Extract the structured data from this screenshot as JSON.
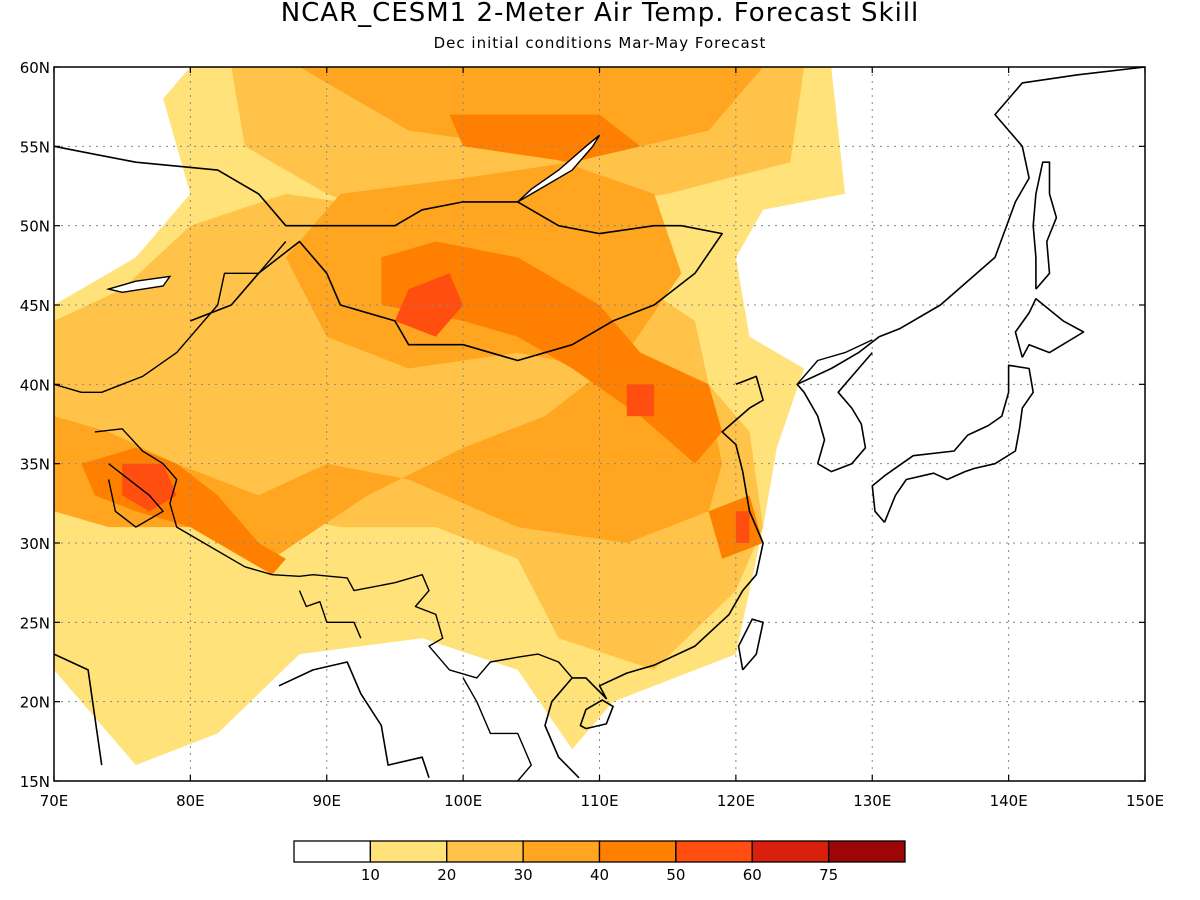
{
  "title": "NCAR_CESM1 2-Meter Air Temp. Forecast Skill",
  "subtitle": "Dec initial conditions  Mar-May Forecast",
  "axes": {
    "lon_ticks": [
      "70E",
      "80E",
      "90E",
      "100E",
      "110E",
      "120E",
      "130E",
      "140E",
      "150E"
    ],
    "lat_ticks": [
      "60N",
      "55N",
      "50N",
      "45N",
      "40N",
      "35N",
      "30N",
      "25N",
      "20N",
      "15N"
    ],
    "lon_range": [
      70,
      150
    ],
    "lat_range": [
      15,
      60
    ],
    "grid": "dotted"
  },
  "colorbar": {
    "labels": [
      "10",
      "20",
      "30",
      "40",
      "50",
      "60",
      "75"
    ],
    "bins": [
      {
        "color": "#ffffff"
      },
      {
        "color": "#ffe27a"
      },
      {
        "color": "#ffc34a"
      },
      {
        "color": "#ffa51f"
      },
      {
        "color": "#ff8000"
      },
      {
        "color": "#ff4e10"
      },
      {
        "color": "#d9200c"
      },
      {
        "color": "#9c0606"
      }
    ]
  },
  "skill_regions": [
    {
      "level": 1,
      "points": [
        [
          80,
          60
        ],
        [
          127,
          60
        ],
        [
          128,
          52
        ],
        [
          122,
          51
        ],
        [
          120,
          48
        ],
        [
          121,
          43
        ],
        [
          125,
          41
        ],
        [
          123,
          36
        ],
        [
          122,
          31
        ],
        [
          120,
          23
        ],
        [
          111,
          20
        ],
        [
          108,
          17
        ],
        [
          104,
          22
        ],
        [
          97,
          24
        ],
        [
          88,
          23
        ],
        [
          82,
          18
        ],
        [
          76,
          16
        ],
        [
          70,
          22
        ],
        [
          70,
          45
        ],
        [
          76,
          48
        ],
        [
          80,
          52
        ],
        [
          78,
          58
        ]
      ]
    },
    {
      "level": 2,
      "points": [
        [
          83,
          60
        ],
        [
          125,
          60
        ],
        [
          124,
          54
        ],
        [
          115,
          52
        ],
        [
          107,
          51
        ],
        [
          101,
          50
        ],
        [
          95,
          51
        ],
        [
          87,
          52
        ],
        [
          80,
          50
        ],
        [
          75,
          46
        ],
        [
          70,
          44
        ],
        [
          70,
          37
        ],
        [
          76,
          36
        ],
        [
          79,
          34
        ],
        [
          85,
          32
        ],
        [
          91,
          31
        ],
        [
          98,
          31
        ],
        [
          104,
          29
        ],
        [
          107,
          24
        ],
        [
          114,
          22
        ],
        [
          120,
          27
        ],
        [
          122,
          31
        ],
        [
          121,
          37
        ],
        [
          118,
          40
        ],
        [
          117,
          44
        ],
        [
          110,
          48
        ],
        [
          102,
          50
        ],
        [
          96,
          50
        ],
        [
          90,
          52
        ],
        [
          84,
          55
        ]
      ]
    },
    {
      "level": 3,
      "points": [
        [
          88,
          60
        ],
        [
          122,
          60
        ],
        [
          118,
          56
        ],
        [
          108,
          54
        ],
        [
          100,
          53
        ],
        [
          91,
          52
        ],
        [
          87,
          48
        ],
        [
          90,
          43
        ],
        [
          96,
          41
        ],
        [
          104,
          42
        ],
        [
          110,
          41
        ],
        [
          114,
          39
        ],
        [
          118,
          39
        ],
        [
          119,
          35
        ],
        [
          118,
          32
        ],
        [
          112,
          30
        ],
        [
          104,
          31
        ],
        [
          96,
          34
        ],
        [
          90,
          35
        ],
        [
          85,
          33
        ],
        [
          79,
          35
        ],
        [
          74,
          37
        ],
        [
          70,
          38
        ],
        [
          70,
          32
        ],
        [
          74,
          31
        ],
        [
          80,
          31
        ],
        [
          86,
          29
        ],
        [
          93,
          33
        ],
        [
          100,
          36
        ],
        [
          106,
          38
        ],
        [
          112,
          42
        ],
        [
          116,
          47
        ],
        [
          114,
          52
        ],
        [
          104,
          55
        ],
        [
          96,
          56
        ]
      ]
    },
    {
      "level": 4,
      "points": [
        [
          94,
          48
        ],
        [
          98,
          49
        ],
        [
          104,
          48
        ],
        [
          110,
          45
        ],
        [
          113,
          42
        ],
        [
          118,
          40
        ],
        [
          119,
          37
        ],
        [
          117,
          35
        ],
        [
          113,
          38
        ],
        [
          108,
          41
        ],
        [
          104,
          43
        ],
        [
          100,
          44
        ],
        [
          94,
          45
        ]
      ]
    },
    {
      "level": 4,
      "points": [
        [
          72,
          35
        ],
        [
          76,
          36
        ],
        [
          79,
          35
        ],
        [
          82,
          33
        ],
        [
          85,
          30
        ],
        [
          87,
          29
        ],
        [
          86,
          28
        ],
        [
          80,
          31
        ],
        [
          76,
          32
        ],
        [
          73,
          33
        ]
      ]
    },
    {
      "level": 4,
      "points": [
        [
          99,
          57
        ],
        [
          110,
          57
        ],
        [
          113,
          55
        ],
        [
          108,
          54
        ],
        [
          100,
          55
        ]
      ]
    },
    {
      "level": 4,
      "points": [
        [
          118,
          32
        ],
        [
          121,
          33
        ],
        [
          122,
          30
        ],
        [
          119,
          29
        ]
      ]
    },
    {
      "level": 5,
      "points": [
        [
          96,
          46
        ],
        [
          99,
          47
        ],
        [
          100,
          45
        ],
        [
          98,
          43
        ],
        [
          95,
          44
        ]
      ]
    },
    {
      "level": 5,
      "points": [
        [
          75,
          35
        ],
        [
          78,
          35
        ],
        [
          79,
          33
        ],
        [
          77,
          32
        ],
        [
          75,
          33
        ]
      ]
    },
    {
      "level": 5,
      "points": [
        [
          112,
          40
        ],
        [
          114,
          40
        ],
        [
          114,
          38
        ],
        [
          112,
          38
        ]
      ]
    },
    {
      "level": 5,
      "points": [
        [
          120,
          32
        ],
        [
          121,
          32
        ],
        [
          121,
          30
        ],
        [
          120,
          30
        ]
      ]
    }
  ],
  "coastline_paths": [
    [
      [
        70,
        55
      ],
      [
        73,
        54.5
      ],
      [
        76,
        54
      ],
      [
        82,
        53.5
      ],
      [
        85,
        52
      ],
      [
        87,
        50
      ],
      [
        91,
        50
      ],
      [
        95,
        50
      ],
      [
        97,
        51
      ],
      [
        100,
        51.5
      ],
      [
        104,
        51.5
      ],
      [
        107,
        50
      ],
      [
        110,
        49.5
      ],
      [
        114,
        50
      ],
      [
        116,
        50
      ],
      [
        119,
        49.5
      ],
      [
        117,
        47
      ],
      [
        114,
        45
      ],
      [
        111,
        44
      ],
      [
        108,
        42.5
      ],
      [
        104,
        41.5
      ],
      [
        100,
        42.5
      ],
      [
        96,
        42.5
      ],
      [
        95,
        44
      ],
      [
        91,
        45
      ],
      [
        90,
        47
      ],
      [
        88,
        49
      ],
      [
        85,
        47
      ],
      [
        83,
        45
      ],
      [
        80,
        44
      ]
    ],
    [
      [
        120,
        40
      ],
      [
        121.5,
        40.5
      ],
      [
        122,
        39
      ],
      [
        121,
        38.5
      ],
      [
        119,
        37
      ],
      [
        120,
        36.2
      ],
      [
        120.5,
        34.5
      ],
      [
        121,
        32
      ],
      [
        122,
        30
      ],
      [
        121.5,
        28
      ],
      [
        120.5,
        27
      ],
      [
        119.5,
        25.5
      ],
      [
        117,
        23.5
      ],
      [
        114,
        22.3
      ],
      [
        112,
        21.8
      ],
      [
        110,
        21
      ],
      [
        110.5,
        20.2
      ],
      [
        109,
        21.5
      ],
      [
        108,
        21.5
      ],
      [
        106.5,
        20
      ],
      [
        106,
        18.5
      ],
      [
        107,
        16.5
      ],
      [
        108.5,
        15.2
      ]
    ],
    [
      [
        70,
        23
      ],
      [
        72.5,
        22
      ],
      [
        73,
        19
      ],
      [
        73.5,
        16
      ]
    ],
    [
      [
        86.5,
        21
      ],
      [
        89,
        22
      ],
      [
        91.5,
        22.5
      ],
      [
        92.5,
        20.5
      ],
      [
        94,
        18.5
      ],
      [
        94.5,
        16
      ],
      [
        97,
        16.5
      ],
      [
        97.5,
        15.2
      ]
    ],
    [
      [
        126,
        35
      ],
      [
        126.5,
        36.5
      ],
      [
        126,
        38
      ],
      [
        125,
        39.5
      ],
      [
        124.5,
        40
      ],
      [
        127,
        41
      ],
      [
        129,
        42
      ],
      [
        130.5,
        43
      ],
      [
        132,
        43.5
      ],
      [
        135,
        45
      ],
      [
        139,
        48
      ],
      [
        140.5,
        51.5
      ],
      [
        141.5,
        53
      ],
      [
        141,
        55
      ],
      [
        139,
        57
      ],
      [
        141,
        59
      ],
      [
        145,
        59.5
      ],
      [
        150,
        60
      ]
    ],
    [
      [
        126,
        35
      ],
      [
        127,
        34.5
      ],
      [
        128.5,
        35
      ],
      [
        129.5,
        36
      ],
      [
        129.2,
        37.5
      ],
      [
        128.5,
        38.5
      ],
      [
        127.5,
        39.5
      ],
      [
        128,
        40
      ],
      [
        129,
        41
      ],
      [
        130,
        42
      ]
    ],
    [
      [
        130.9,
        31.3
      ],
      [
        131.7,
        33
      ],
      [
        132.5,
        34
      ],
      [
        134.5,
        34.4
      ],
      [
        135.5,
        34
      ],
      [
        136.8,
        34.5
      ],
      [
        137.5,
        34.7
      ],
      [
        139,
        35
      ],
      [
        140.5,
        35.8
      ],
      [
        140.8,
        37.2
      ],
      [
        141,
        38.5
      ],
      [
        141.8,
        39.5
      ],
      [
        141.5,
        41
      ],
      [
        140,
        41.2
      ],
      [
        140,
        39.5
      ],
      [
        139.5,
        38
      ],
      [
        138.5,
        37.4
      ],
      [
        137,
        36.8
      ],
      [
        136,
        35.8
      ],
      [
        133,
        35.5
      ],
      [
        131,
        34.3
      ],
      [
        130,
        33.6
      ],
      [
        130.2,
        32
      ],
      [
        130.9,
        31.3
      ]
    ],
    [
      [
        141,
        41.7
      ],
      [
        141.5,
        42.5
      ],
      [
        143,
        42
      ],
      [
        145.5,
        43.3
      ],
      [
        144,
        44
      ],
      [
        142,
        45.4
      ],
      [
        141.5,
        44.5
      ],
      [
        140.5,
        43.3
      ],
      [
        141,
        41.7
      ]
    ],
    [
      [
        142,
        46
      ],
      [
        143,
        47
      ],
      [
        142.8,
        49
      ],
      [
        143.5,
        50.5
      ],
      [
        143,
        52
      ],
      [
        143,
        54
      ],
      [
        142.5,
        54
      ],
      [
        142,
        52
      ],
      [
        141.8,
        50
      ],
      [
        142,
        48
      ],
      [
        142,
        46
      ]
    ],
    [
      [
        120.5,
        22
      ],
      [
        121.5,
        23
      ],
      [
        122,
        25
      ],
      [
        121.2,
        25.2
      ],
      [
        120.2,
        23.5
      ],
      [
        120.5,
        22
      ]
    ],
    [
      [
        109,
        18.3
      ],
      [
        110.5,
        18.6
      ],
      [
        111,
        19.7
      ],
      [
        110.2,
        20.1
      ],
      [
        109,
        19.5
      ],
      [
        108.6,
        18.5
      ],
      [
        109,
        18.3
      ]
    ]
  ],
  "border_paths": [
    [
      [
        70,
        40
      ],
      [
        72,
        39.5
      ],
      [
        73.5,
        39.5
      ],
      [
        75,
        40
      ],
      [
        76.5,
        40.5
      ],
      [
        79,
        42
      ],
      [
        80,
        43
      ],
      [
        82,
        45
      ],
      [
        82.5,
        47
      ],
      [
        85,
        47
      ],
      [
        87,
        49
      ]
    ],
    [
      [
        73,
        37
      ],
      [
        75,
        37.2
      ],
      [
        76.5,
        35.8
      ],
      [
        78,
        35
      ],
      [
        79,
        34
      ],
      [
        78.5,
        32.5
      ],
      [
        79,
        31
      ],
      [
        81,
        30
      ],
      [
        84,
        28.5
      ],
      [
        86,
        28
      ],
      [
        88,
        27.9
      ],
      [
        89,
        28
      ],
      [
        91.5,
        27.8
      ],
      [
        92,
        27
      ],
      [
        95,
        27.5
      ],
      [
        97,
        28
      ],
      [
        97.5,
        27
      ],
      [
        96.5,
        26
      ],
      [
        98,
        25.5
      ],
      [
        98.5,
        24
      ],
      [
        97.5,
        23.5
      ],
      [
        99,
        22
      ],
      [
        101,
        21.5
      ],
      [
        102,
        22.5
      ],
      [
        104,
        22.8
      ],
      [
        105.5,
        23
      ],
      [
        107,
        22.5
      ],
      [
        108,
        21.5
      ]
    ],
    [
      [
        74,
        35
      ],
      [
        77,
        33
      ],
      [
        78,
        32
      ],
      [
        76,
        31
      ],
      [
        74.5,
        32
      ],
      [
        74,
        34
      ]
    ],
    [
      [
        100,
        21.5
      ],
      [
        101,
        20
      ],
      [
        102,
        18
      ],
      [
        104,
        18
      ],
      [
        105,
        16
      ],
      [
        104,
        15
      ]
    ],
    [
      [
        88,
        27
      ],
      [
        88.5,
        26
      ],
      [
        89.5,
        26.3
      ],
      [
        90,
        25
      ],
      [
        92,
        25
      ],
      [
        92.5,
        24
      ]
    ],
    [
      [
        124.5,
        40
      ],
      [
        126,
        41.5
      ],
      [
        128,
        42
      ],
      [
        130,
        42.8
      ]
    ]
  ],
  "lakes": [
    [
      [
        104,
        51.5
      ],
      [
        106,
        52.5
      ],
      [
        108,
        53.5
      ],
      [
        109.5,
        55
      ],
      [
        110,
        55.7
      ],
      [
        109,
        55
      ],
      [
        107,
        53.5
      ],
      [
        105,
        52.3
      ],
      [
        104,
        51.5
      ]
    ],
    [
      [
        74,
        46
      ],
      [
        76,
        46.5
      ],
      [
        78.5,
        46.8
      ],
      [
        78,
        46.2
      ],
      [
        75,
        45.8
      ],
      [
        74,
        46
      ]
    ]
  ]
}
